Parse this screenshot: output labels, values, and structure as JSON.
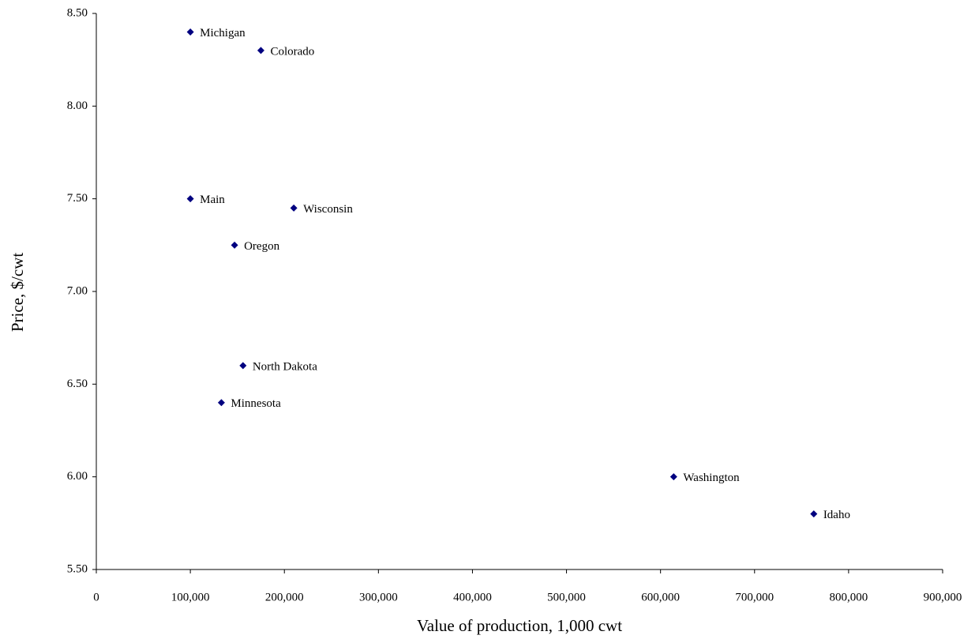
{
  "chart_data": {
    "type": "scatter",
    "x_label": "Value of production, 1,000 cwt",
    "y_label": "Price, $/cwt",
    "point_labels": [
      "Michigan",
      "Colorado",
      "Main",
      "Wisconsin",
      "Oregon",
      "North Dakota",
      "Minnesota",
      "Washington",
      "Idaho"
    ],
    "x": [
      100000,
      175000,
      100000,
      210000,
      147000,
      156000,
      133000,
      614000,
      763000
    ],
    "values": [
      8.4,
      8.3,
      7.5,
      7.45,
      7.25,
      6.6,
      6.4,
      6.0,
      5.8
    ],
    "color": "#000080",
    "xlim": [
      0,
      900000
    ],
    "xticks": [
      0,
      {
        "value": 100000,
        "label": "100,000"
      },
      {
        "value": 200000,
        "label": "200,000"
      },
      {
        "value": 300000,
        "label": "300,000"
      },
      {
        "value": 400000,
        "label": "400,000"
      },
      {
        "value": 500000,
        "label": "500,000"
      },
      {
        "value": 600000,
        "label": "600,000"
      },
      {
        "value": 700000,
        "label": "700,000"
      },
      {
        "value": 800000,
        "label": "800,000"
      },
      {
        "value": 900000,
        "label": "900,000"
      }
    ],
    "ylim": [
      5.5,
      8.5
    ],
    "yticks": [
      {
        "value": 5.5,
        "label": "5.50"
      },
      {
        "value": 6,
        "label": "6.00"
      },
      {
        "value": 6.5,
        "label": "6.50"
      },
      {
        "value": 7,
        "label": "7.00"
      },
      {
        "value": 7.5,
        "label": "7.50"
      },
      {
        "value": 8,
        "label": "8.00"
      },
      {
        "value": 8.5,
        "label": "8.50"
      }
    ],
    "grid": false
  }
}
